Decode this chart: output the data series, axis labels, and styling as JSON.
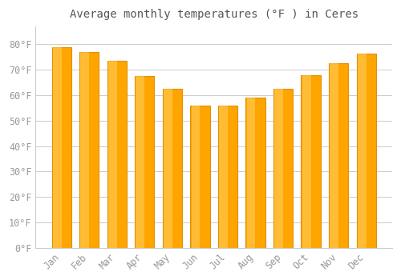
{
  "title": "Average monthly temperatures (°F ) in Ceres",
  "months": [
    "Jan",
    "Feb",
    "Mar",
    "Apr",
    "May",
    "Jun",
    "Jul",
    "Aug",
    "Sep",
    "Oct",
    "Nov",
    "Dec"
  ],
  "values": [
    79,
    77,
    73.5,
    67.5,
    62.5,
    56,
    56,
    59,
    62.5,
    68,
    72.5,
    76.5
  ],
  "bar_color": "#FFA500",
  "bar_edge_color": "#E09000",
  "background_color": "#FFFFFF",
  "plot_bg_color": "#FFFFFF",
  "grid_color": "#CCCCCC",
  "yticks": [
    0,
    10,
    20,
    30,
    40,
    50,
    60,
    70,
    80
  ],
  "ylim": [
    0,
    87
  ],
  "title_fontsize": 10,
  "tick_fontsize": 8.5,
  "tick_label_color": "#999999",
  "title_color": "#555555",
  "bar_width": 0.7
}
